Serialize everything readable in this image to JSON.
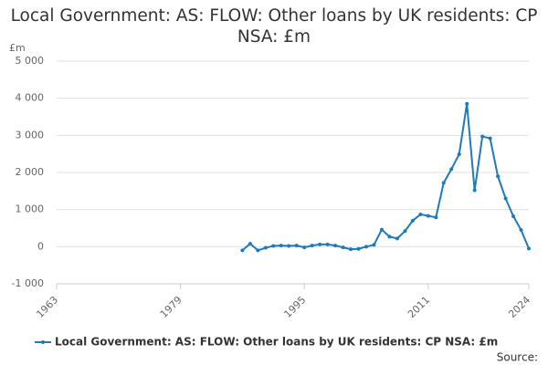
{
  "chart_data": {
    "type": "line",
    "title": "Local Government: AS: FLOW: Other loans by UK residents: CP NSA: £m",
    "y_unit": "£m",
    "source": "Source:",
    "x": [
      1987,
      1988,
      1989,
      1990,
      1991,
      1992,
      1993,
      1994,
      1995,
      1996,
      1997,
      1998,
      1999,
      2000,
      2001,
      2002,
      2003,
      2004,
      2005,
      2006,
      2007,
      2008,
      2009,
      2010,
      2011,
      2012,
      2013,
      2014,
      2015,
      2016,
      2017,
      2018,
      2019,
      2020,
      2021,
      2022,
      2023,
      2024
    ],
    "series": [
      {
        "name": "Local Government: AS: FLOW: Other loans by UK residents: CP NSA: £m",
        "color": "#1f7ab8",
        "values": [
          -100,
          80,
          -100,
          -30,
          20,
          30,
          20,
          30,
          -20,
          30,
          60,
          60,
          30,
          -20,
          -70,
          -60,
          0,
          50,
          460,
          270,
          220,
          420,
          700,
          870,
          830,
          790,
          1720,
          2090,
          2490,
          3850,
          1520,
          2970,
          2920,
          1900,
          1300,
          820,
          450,
          -50
        ]
      }
    ],
    "xlim": [
      1963,
      2024
    ],
    "xticks": [
      1963,
      1979,
      1995,
      2011,
      2024
    ],
    "ylim": [
      -1000,
      5000
    ],
    "yticks": [
      {
        "value": -1000,
        "label": "-1 000"
      },
      0,
      {
        "value": 1000,
        "label": "1 000"
      },
      {
        "value": 2000,
        "label": "2 000"
      },
      {
        "value": 3000,
        "label": "3 000"
      },
      {
        "value": 4000,
        "label": "4 000"
      },
      {
        "value": 5000,
        "label": "5 000"
      }
    ],
    "grid": true
  }
}
